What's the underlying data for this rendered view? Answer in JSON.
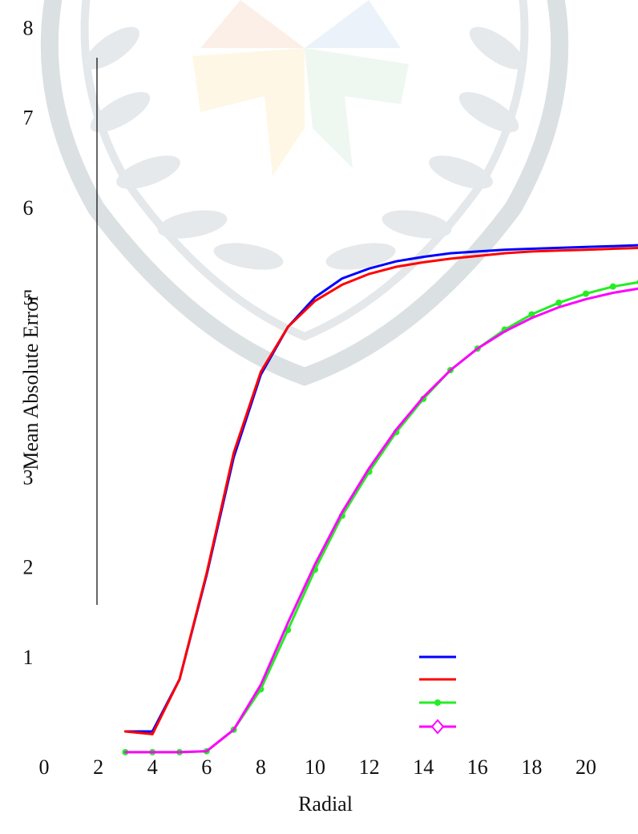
{
  "chart_data": {
    "type": "line",
    "title": "",
    "xlabel": "Radial",
    "ylabel": "Mean Absolute Error",
    "xlim": [
      0,
      22
    ],
    "ylim": [
      0,
      8
    ],
    "x_ticks": [
      0,
      2,
      4,
      6,
      8,
      10,
      12,
      14,
      16,
      18,
      20
    ],
    "y_ticks": [
      1,
      2,
      3,
      5,
      6,
      7,
      8
    ],
    "grid": false,
    "legend_position": "bottom-right",
    "series": [
      {
        "color": "#0000ff",
        "marker": "none",
        "x": [
          3,
          4,
          5,
          6,
          7,
          8,
          9,
          10,
          11,
          12,
          13,
          14,
          15,
          16,
          17,
          18,
          19,
          20,
          21,
          22
        ],
        "y": [
          0.16,
          0.16,
          0.74,
          1.9,
          3.21,
          4.13,
          4.66,
          4.99,
          5.2,
          5.31,
          5.39,
          5.44,
          5.48,
          5.5,
          5.52,
          5.53,
          5.54,
          5.55,
          5.56,
          5.57
        ]
      },
      {
        "color": "#ff0000",
        "marker": "none",
        "x": [
          3,
          4,
          5,
          6,
          7,
          8,
          9,
          10,
          11,
          12,
          13,
          14,
          15,
          16,
          17,
          18,
          19,
          20,
          21,
          22
        ],
        "y": [
          0.16,
          0.13,
          0.74,
          1.92,
          3.26,
          4.16,
          4.66,
          4.95,
          5.13,
          5.25,
          5.33,
          5.38,
          5.42,
          5.45,
          5.48,
          5.5,
          5.51,
          5.52,
          5.53,
          5.54
        ]
      },
      {
        "color": "#22ee22",
        "marker": "circle",
        "x": [
          3,
          4,
          5,
          6,
          7,
          8,
          9,
          10,
          11,
          12,
          13,
          14,
          15,
          16,
          17,
          18,
          19,
          20,
          21,
          22
        ],
        "y": [
          -0.07,
          -0.07,
          -0.07,
          -0.06,
          0.18,
          0.63,
          1.29,
          1.96,
          2.56,
          3.05,
          3.49,
          3.86,
          4.18,
          4.42,
          4.63,
          4.8,
          4.93,
          5.03,
          5.11,
          5.16
        ]
      },
      {
        "color": "#ff00ff",
        "marker": "diamond",
        "x": [
          3,
          4,
          5,
          6,
          7,
          8,
          9,
          10,
          11,
          12,
          13,
          14,
          15,
          16,
          17,
          18,
          19,
          20,
          21,
          22
        ],
        "y": [
          -0.07,
          -0.07,
          -0.07,
          -0.06,
          0.18,
          0.68,
          1.37,
          2.02,
          2.6,
          3.09,
          3.52,
          3.88,
          4.18,
          4.42,
          4.61,
          4.76,
          4.88,
          4.97,
          5.04,
          5.09
        ]
      }
    ]
  }
}
